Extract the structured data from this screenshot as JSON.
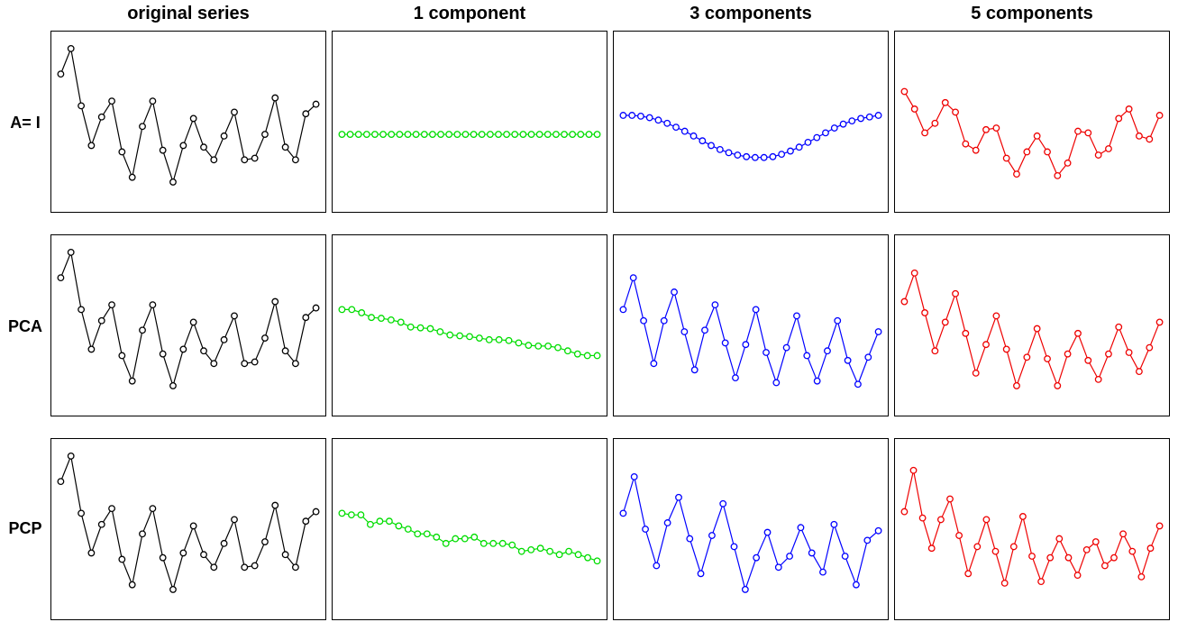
{
  "columns": [
    "original series",
    "1 component",
    "3 components",
    "5 components"
  ],
  "rows": [
    "A= I",
    "PCA",
    "PCP"
  ],
  "colors": {
    "original": "#000000",
    "one_component": "#00dd00",
    "three_components": "#0000ff",
    "five_components": "#ee0000"
  },
  "chart_data": [
    {
      "type": "line",
      "row": "A= I",
      "column": "original series",
      "markers": "open-circle",
      "ylim": [
        0,
        10
      ],
      "series": [
        {
          "values": [
            8.0,
            9.6,
            6.0,
            3.5,
            5.3,
            6.3,
            3.1,
            1.5,
            4.7,
            6.3,
            3.2,
            1.2,
            3.5,
            5.2,
            3.4,
            2.6,
            4.1,
            5.6,
            2.6,
            2.7,
            4.2,
            6.5,
            3.4,
            2.6,
            5.5,
            6.1
          ]
        }
      ]
    },
    {
      "type": "line",
      "row": "A= I",
      "column": "1 component",
      "markers": "open-circle",
      "ylim": [
        0,
        10
      ],
      "series": [
        {
          "values": [
            4.2,
            4.2,
            4.2,
            4.2,
            4.2,
            4.2,
            4.2,
            4.2,
            4.2,
            4.2,
            4.2,
            4.2,
            4.2,
            4.2,
            4.2,
            4.2,
            4.2,
            4.2,
            4.2,
            4.2,
            4.2,
            4.2,
            4.2,
            4.2,
            4.2,
            4.2,
            4.2,
            4.2,
            4.2,
            4.2,
            4.2,
            4.2
          ]
        }
      ]
    },
    {
      "type": "line",
      "row": "A= I",
      "column": "3 components",
      "markers": "open-circle",
      "ylim": [
        0,
        10
      ],
      "series": [
        {
          "values": [
            5.4,
            5.4,
            5.35,
            5.25,
            5.1,
            4.9,
            4.65,
            4.4,
            4.1,
            3.8,
            3.5,
            3.25,
            3.05,
            2.9,
            2.8,
            2.75,
            2.75,
            2.8,
            2.95,
            3.15,
            3.4,
            3.7,
            4.0,
            4.3,
            4.6,
            4.85,
            5.05,
            5.2,
            5.3,
            5.4
          ]
        }
      ]
    },
    {
      "type": "line",
      "row": "A= I",
      "column": "5 components",
      "markers": "open-circle",
      "ylim": [
        0,
        10
      ],
      "series": [
        {
          "values": [
            6.9,
            5.8,
            4.3,
            4.9,
            6.2,
            5.6,
            3.6,
            3.2,
            4.5,
            4.6,
            2.7,
            1.7,
            3.1,
            4.1,
            3.1,
            1.6,
            2.4,
            4.4,
            4.3,
            2.9,
            3.3,
            5.2,
            5.8,
            4.1,
            3.9,
            5.4
          ]
        }
      ]
    },
    {
      "type": "line",
      "row": "PCA",
      "column": "original series",
      "markers": "open-circle",
      "ylim": [
        0,
        10
      ],
      "series": [
        {
          "values": [
            8.0,
            9.6,
            6.0,
            3.5,
            5.3,
            6.3,
            3.1,
            1.5,
            4.7,
            6.3,
            3.2,
            1.2,
            3.5,
            5.2,
            3.4,
            2.6,
            4.1,
            5.6,
            2.6,
            2.7,
            4.2,
            6.5,
            3.4,
            2.6,
            5.5,
            6.1
          ]
        }
      ]
    },
    {
      "type": "line",
      "row": "PCA",
      "column": "1 component",
      "markers": "open-circle",
      "ylim": [
        0,
        10
      ],
      "series": [
        {
          "values": [
            6.0,
            6.0,
            5.8,
            5.5,
            5.45,
            5.35,
            5.2,
            4.9,
            4.85,
            4.8,
            4.6,
            4.4,
            4.35,
            4.3,
            4.2,
            4.1,
            4.1,
            4.05,
            3.9,
            3.75,
            3.7,
            3.7,
            3.6,
            3.4,
            3.2,
            3.1,
            3.1
          ]
        }
      ]
    },
    {
      "type": "line",
      "row": "PCA",
      "column": "3 components",
      "markers": "open-circle",
      "ylim": [
        0,
        10
      ],
      "series": [
        {
          "values": [
            6.0,
            8.0,
            5.3,
            2.6,
            5.3,
            7.1,
            4.6,
            2.2,
            4.7,
            6.3,
            3.9,
            1.7,
            3.8,
            6.0,
            3.3,
            1.4,
            3.6,
            5.6,
            3.1,
            1.5,
            3.4,
            5.3,
            2.8,
            1.3,
            3.0,
            4.6
          ]
        }
      ]
    },
    {
      "type": "line",
      "row": "PCA",
      "column": "5 components",
      "markers": "open-circle",
      "ylim": [
        0,
        10
      ],
      "series": [
        {
          "values": [
            6.5,
            8.3,
            5.8,
            3.4,
            5.2,
            7.0,
            4.5,
            2.0,
            3.8,
            5.6,
            3.5,
            1.2,
            3.0,
            4.8,
            2.9,
            1.2,
            3.2,
            4.5,
            2.8,
            1.6,
            3.2,
            4.9,
            3.3,
            2.1,
            3.6,
            5.2
          ]
        }
      ]
    },
    {
      "type": "line",
      "row": "PCP",
      "column": "original series",
      "markers": "open-circle",
      "ylim": [
        0,
        10
      ],
      "series": [
        {
          "values": [
            8.0,
            9.6,
            6.0,
            3.5,
            5.3,
            6.3,
            3.1,
            1.5,
            4.7,
            6.3,
            3.2,
            1.2,
            3.5,
            5.2,
            3.4,
            2.6,
            4.1,
            5.6,
            2.6,
            2.7,
            4.2,
            6.5,
            3.4,
            2.6,
            5.5,
            6.1
          ]
        }
      ]
    },
    {
      "type": "line",
      "row": "PCP",
      "column": "1 component",
      "markers": "open-circle",
      "ylim": [
        0,
        10
      ],
      "series": [
        {
          "values": [
            6.0,
            5.9,
            5.9,
            5.3,
            5.5,
            5.5,
            5.2,
            5.0,
            4.7,
            4.7,
            4.5,
            4.1,
            4.4,
            4.4,
            4.5,
            4.1,
            4.1,
            4.1,
            4.0,
            3.6,
            3.7,
            3.8,
            3.6,
            3.4,
            3.6,
            3.4,
            3.2,
            3.0
          ]
        }
      ]
    },
    {
      "type": "line",
      "row": "PCP",
      "column": "3 components",
      "markers": "open-circle",
      "ylim": [
        0,
        10
      ],
      "series": [
        {
          "values": [
            6.0,
            8.3,
            5.0,
            2.7,
            5.4,
            7.0,
            4.4,
            2.2,
            4.6,
            6.6,
            3.9,
            1.2,
            3.2,
            4.8,
            2.6,
            3.3,
            5.1,
            3.5,
            2.3,
            5.3,
            3.3,
            1.5,
            4.3,
            4.9
          ]
        }
      ]
    },
    {
      "type": "line",
      "row": "PCP",
      "column": "5 components",
      "markers": "open-circle",
      "ylim": [
        0,
        10
      ],
      "series": [
        {
          "values": [
            6.1,
            8.7,
            5.7,
            3.8,
            5.6,
            6.9,
            4.6,
            2.2,
            3.9,
            5.6,
            3.6,
            1.6,
            3.9,
            5.8,
            3.3,
            1.7,
            3.2,
            4.4,
            3.2,
            2.1,
            3.7,
            4.2,
            2.7,
            3.2,
            4.7,
            3.6,
            2.0,
            3.8,
            5.2
          ]
        }
      ]
    }
  ]
}
